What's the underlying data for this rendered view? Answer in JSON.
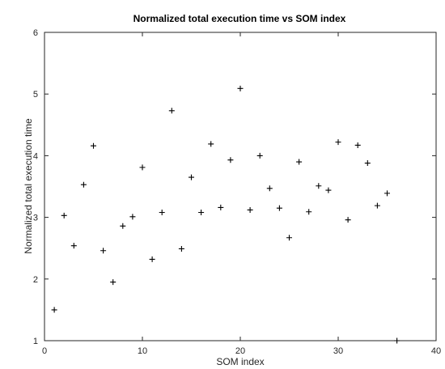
{
  "chart_data": {
    "type": "scatter",
    "title": "Normalized total execution time vs SOM index",
    "xlabel": "SOM index",
    "ylabel": "Normalized total execution time",
    "xlim": [
      0,
      40
    ],
    "ylim": [
      1,
      6
    ],
    "xticks": [
      0,
      10,
      20,
      30,
      40
    ],
    "yticks": [
      1,
      2,
      3,
      4,
      5,
      6
    ],
    "grid": false,
    "marker": "plus",
    "marker_color": "#000000",
    "series": [
      {
        "x": [
          1,
          2,
          3,
          4,
          5,
          6,
          7,
          8,
          9,
          10,
          11,
          12,
          13,
          14,
          15,
          16,
          17,
          18,
          19,
          20,
          21,
          22,
          23,
          24,
          25,
          26,
          27,
          28,
          29,
          30,
          31,
          32,
          33,
          34,
          35,
          36
        ],
        "y": [
          1.5,
          3.03,
          2.54,
          3.53,
          4.16,
          2.46,
          1.95,
          2.86,
          3.01,
          3.81,
          2.32,
          3.08,
          4.73,
          2.49,
          3.65,
          3.08,
          4.19,
          3.16,
          3.93,
          5.09,
          3.12,
          4.0,
          3.47,
          3.15,
          2.67,
          3.9,
          3.09,
          3.51,
          3.44,
          4.22,
          2.96,
          4.17,
          3.88,
          3.19,
          3.39,
          1.0
        ]
      }
    ]
  }
}
